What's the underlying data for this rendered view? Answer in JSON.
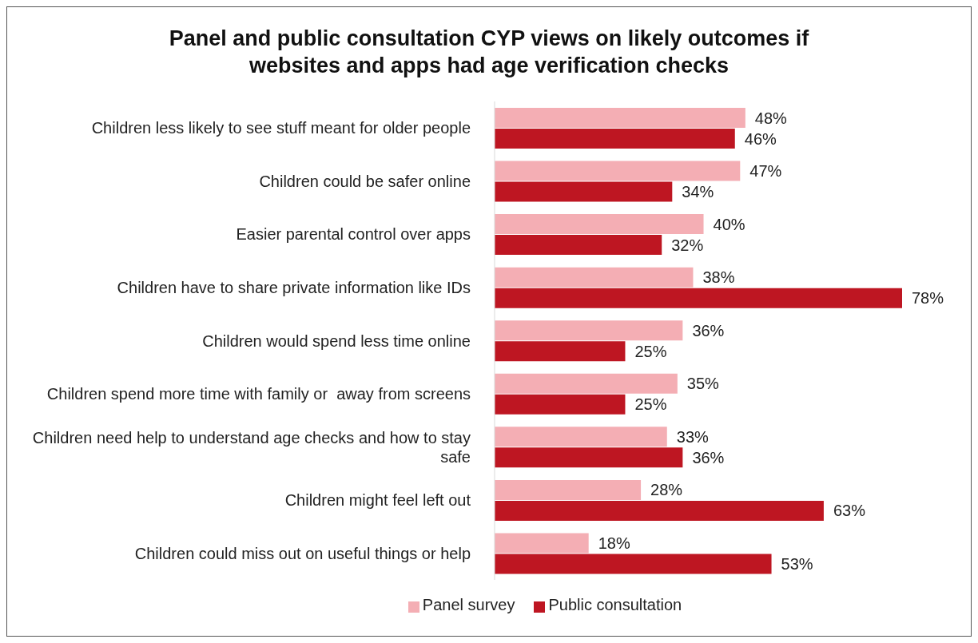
{
  "chart_data": {
    "type": "bar",
    "orientation": "horizontal",
    "title": "Panel and public consultation CYP views on likely outcomes if websites and apps had age verification checks",
    "categories": [
      "Children less likely to see stuff meant for older people",
      "Children could be safer online",
      "Easier parental control over apps",
      "Children have to share private information like IDs",
      "Children would spend less time online",
      "Children spend more time with family or  away from screens",
      "Children need help to understand age checks and how to stay safe",
      "Children might feel left out",
      "Children could miss out on useful things or help"
    ],
    "series": [
      {
        "name": "Panel survey",
        "color": "#f4aeb4",
        "values": [
          48,
          47,
          40,
          38,
          36,
          35,
          33,
          28,
          18
        ],
        "value_labels": [
          "48%",
          "47%",
          "40%",
          "38%",
          "36%",
          "35%",
          "33%",
          "28%",
          "18%"
        ]
      },
      {
        "name": "Public consultation",
        "color": "#be1622",
        "values": [
          46,
          34,
          32,
          78,
          25,
          25,
          36,
          63,
          53
        ],
        "value_labels": [
          "46%",
          "34%",
          "32%",
          "78%",
          "25%",
          "25%",
          "36%",
          "63%",
          "53%"
        ]
      }
    ],
    "legend": "bottom",
    "grid": false
  }
}
